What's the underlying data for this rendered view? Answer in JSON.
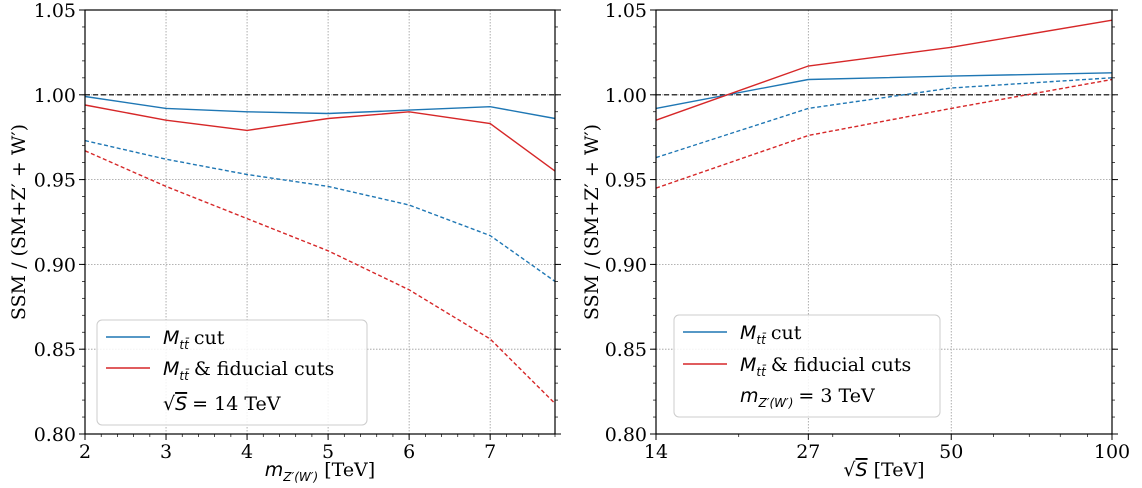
{
  "chart_data": [
    {
      "type": "line",
      "x": [
        2,
        3,
        4,
        5,
        6,
        7,
        7.8
      ],
      "xlim": [
        2,
        7.8
      ],
      "ylim": [
        0.8,
        1.05
      ],
      "xticks": [
        "2",
        "3",
        "4",
        "5",
        "6",
        "7"
      ],
      "yticks": [
        "0.80",
        "0.85",
        "0.90",
        "0.95",
        "1.00",
        "1.05"
      ],
      "xlabel": "[TeV]",
      "ylabel": "SSM / (SM+Z′ + W′)",
      "grid": true,
      "legend_position": "bottom-left",
      "reference_line": 1.0,
      "series": [
        {
          "name": "M_tt̄ cut",
          "color": "#1f77b4",
          "style": "solid",
          "values": [
            0.999,
            0.992,
            0.99,
            0.989,
            0.991,
            0.993,
            0.986
          ]
        },
        {
          "name": "M_tt̄ & fiducial cuts",
          "color": "#d62728",
          "style": "solid",
          "values": [
            0.994,
            0.985,
            0.979,
            0.986,
            0.99,
            0.983,
            0.955
          ]
        },
        {
          "color": "#1f77b4",
          "style": "dashed",
          "values": [
            0.973,
            0.962,
            0.953,
            0.946,
            0.935,
            0.917,
            0.89
          ]
        },
        {
          "color": "#d62728",
          "style": "dashed",
          "values": [
            0.967,
            0.946,
            0.927,
            0.908,
            0.885,
            0.856,
            0.818
          ]
        }
      ],
      "legend": {
        "entry1": "cut",
        "entry2": "& fiducial cuts",
        "note": "= 14 TeV"
      }
    },
    {
      "type": "line",
      "x": [
        14,
        27,
        50,
        100
      ],
      "xscale": "log",
      "xlim": [
        14,
        100
      ],
      "ylim": [
        0.8,
        1.05
      ],
      "xticks": [
        "14",
        "27",
        "50",
        "100"
      ],
      "yticks": [
        "0.80",
        "0.85",
        "0.90",
        "0.95",
        "1.00",
        "1.05"
      ],
      "xlabel": "[TeV]",
      "ylabel": "SSM / (SM+Z′ + W′)",
      "grid": true,
      "legend_position": "bottom-left",
      "reference_line": 1.0,
      "series": [
        {
          "name": "M_tt̄ cut",
          "color": "#1f77b4",
          "style": "solid",
          "values": [
            0.992,
            1.009,
            1.011,
            1.013
          ]
        },
        {
          "name": "M_tt̄ & fiducial cuts",
          "color": "#d62728",
          "style": "solid",
          "values": [
            0.985,
            1.017,
            1.028,
            1.044
          ]
        },
        {
          "color": "#1f77b4",
          "style": "dashed",
          "values": [
            0.963,
            0.992,
            1.004,
            1.01
          ]
        },
        {
          "color": "#d62728",
          "style": "dashed",
          "values": [
            0.945,
            0.976,
            0.992,
            1.009
          ]
        }
      ],
      "legend": {
        "entry1": "cut",
        "entry2": "& fiducial cuts",
        "note": "= 3 TeV"
      }
    }
  ]
}
